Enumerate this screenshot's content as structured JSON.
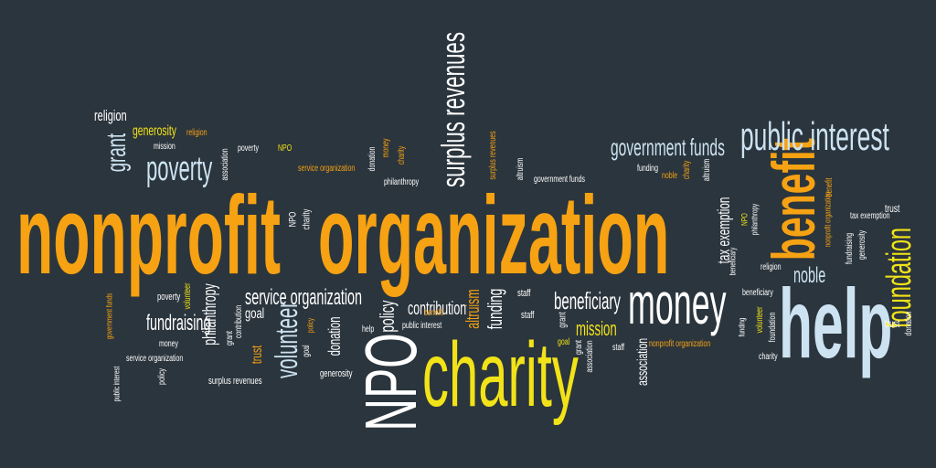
{
  "colors": {
    "background": "#2b353d",
    "orange": "#f6a213",
    "yellow": "#f2e318",
    "white": "#ffffff",
    "light_blue": "#cde3f1"
  },
  "words": [
    {
      "text": "nonprofit",
      "color": "orange"
    },
    {
      "text": "organization",
      "color": "orange"
    },
    {
      "text": "charity",
      "color": "yellow"
    },
    {
      "text": "help",
      "color": "light_blue"
    },
    {
      "text": "money",
      "color": "white"
    },
    {
      "text": "NPO",
      "color": "white"
    },
    {
      "text": "benefit",
      "color": "orange"
    },
    {
      "text": "foundation",
      "color": "yellow"
    },
    {
      "text": "public interest",
      "color": "light_blue"
    },
    {
      "text": "surplus revenues",
      "color": "white"
    },
    {
      "text": "government funds",
      "color": "light_blue"
    },
    {
      "text": "poverty",
      "color": "light_blue"
    },
    {
      "text": "grant",
      "color": "light_blue"
    },
    {
      "text": "religion",
      "color": "white"
    },
    {
      "text": "generosity",
      "color": "yellow"
    },
    {
      "text": "religion",
      "color": "orange"
    },
    {
      "text": "mission",
      "color": "white"
    },
    {
      "text": "association",
      "color": "white"
    },
    {
      "text": "poverty",
      "color": "white"
    },
    {
      "text": "NPO",
      "color": "yellow"
    },
    {
      "text": "service organization",
      "color": "orange"
    },
    {
      "text": "donation",
      "color": "white"
    },
    {
      "text": "money",
      "color": "orange"
    },
    {
      "text": "charity",
      "color": "orange"
    },
    {
      "text": "philanthropy",
      "color": "white"
    },
    {
      "text": "surplus revenues",
      "color": "orange"
    },
    {
      "text": "altruism",
      "color": "white"
    },
    {
      "text": "government funds",
      "color": "white"
    },
    {
      "text": "funding",
      "color": "white"
    },
    {
      "text": "noble",
      "color": "orange"
    },
    {
      "text": "charity",
      "color": "orange"
    },
    {
      "text": "altruism",
      "color": "white"
    },
    {
      "text": "tax exemption",
      "color": "white"
    },
    {
      "text": "NPO",
      "color": "yellow"
    },
    {
      "text": "philanthropy",
      "color": "white"
    },
    {
      "text": "nonprofit organization",
      "color": "orange"
    },
    {
      "text": "tax exemption",
      "color": "white"
    },
    {
      "text": "fundraising",
      "color": "white"
    },
    {
      "text": "generosity",
      "color": "white"
    },
    {
      "text": "trust",
      "color": "white"
    },
    {
      "text": "benefit",
      "color": "orange"
    },
    {
      "text": "noble",
      "color": "light_blue"
    },
    {
      "text": "religion",
      "color": "white"
    },
    {
      "text": "beneficiary",
      "color": "white"
    },
    {
      "text": "beneficiary",
      "color": "white"
    },
    {
      "text": "funding",
      "color": "white"
    },
    {
      "text": "volunteer",
      "color": "yellow"
    },
    {
      "text": "foundation",
      "color": "white"
    },
    {
      "text": "trust",
      "color": "white"
    },
    {
      "text": "donation",
      "color": "white"
    },
    {
      "text": "charity",
      "color": "white"
    },
    {
      "text": "government funds",
      "color": "orange"
    },
    {
      "text": "poverty",
      "color": "white"
    },
    {
      "text": "volunteer",
      "color": "yellow"
    },
    {
      "text": "philanthropy",
      "color": "white"
    },
    {
      "text": "grant",
      "color": "white"
    },
    {
      "text": "contribution",
      "color": "white"
    },
    {
      "text": "service organization",
      "color": "white"
    },
    {
      "text": "goal",
      "color": "white"
    },
    {
      "text": "volunteer",
      "color": "light_blue"
    },
    {
      "text": "policy",
      "color": "orange"
    },
    {
      "text": "donation",
      "color": "white"
    },
    {
      "text": "policy",
      "color": "white"
    },
    {
      "text": "contribution",
      "color": "white"
    },
    {
      "text": "altruism",
      "color": "orange"
    },
    {
      "text": "funding",
      "color": "white"
    },
    {
      "text": "beneficiary",
      "color": "white"
    },
    {
      "text": "staff",
      "color": "white"
    },
    {
      "text": "staff",
      "color": "white"
    },
    {
      "text": "grant",
      "color": "white"
    },
    {
      "text": "mission",
      "color": "yellow"
    },
    {
      "text": "fundraising",
      "color": "white"
    },
    {
      "text": "money",
      "color": "white"
    },
    {
      "text": "trust",
      "color": "orange"
    },
    {
      "text": "service organization",
      "color": "white"
    },
    {
      "text": "public interest",
      "color": "white"
    },
    {
      "text": "policy",
      "color": "white"
    },
    {
      "text": "surplus revenues",
      "color": "white"
    },
    {
      "text": "goal",
      "color": "white"
    },
    {
      "text": "generosity",
      "color": "white"
    },
    {
      "text": "help",
      "color": "white"
    },
    {
      "text": "public interest",
      "color": "white"
    },
    {
      "text": "benefit",
      "color": "orange"
    },
    {
      "text": "goal",
      "color": "yellow"
    },
    {
      "text": "grant",
      "color": "white"
    },
    {
      "text": "association",
      "color": "white"
    },
    {
      "text": "staff",
      "color": "white"
    },
    {
      "text": "nonprofit organization",
      "color": "orange"
    },
    {
      "text": "association",
      "color": "white"
    },
    {
      "text": "NPO",
      "color": "white"
    },
    {
      "text": "charity",
      "color": "white"
    }
  ]
}
